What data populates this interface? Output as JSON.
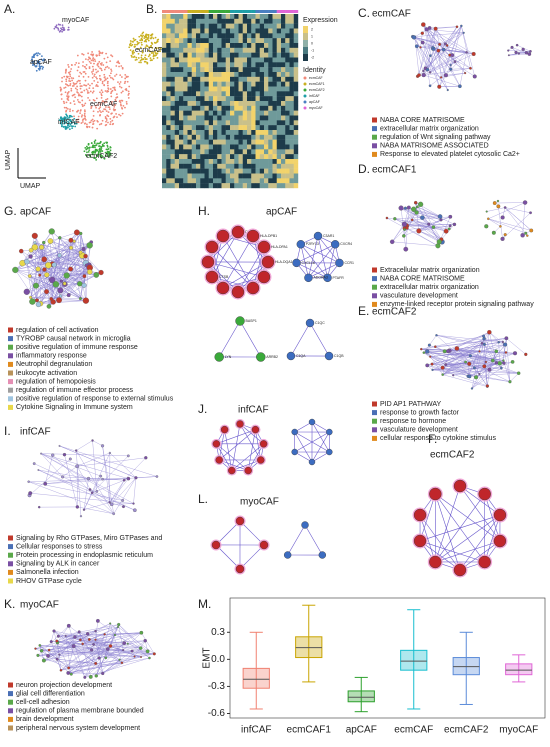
{
  "panels": {
    "A": {
      "letter": "A.",
      "clusters": [
        "myoCAF",
        "apCAF",
        "ecmCAF1",
        "ecmCAF",
        "infCAF",
        "ecmCAF2"
      ],
      "x_axis": "UMAP",
      "y_axis": "UMAP"
    },
    "B": {
      "letter": "B.",
      "expression_title": "Expression",
      "expression_ticks": [
        2,
        1,
        0,
        -1,
        -2
      ],
      "identity_title": "Identity",
      "identities": [
        "ecmCAF",
        "ecmCAF1",
        "ecmCAF2",
        "infCAF",
        "apCAF",
        "myoCAF"
      ]
    },
    "C": {
      "letter": "C.",
      "title": "ecmCAF",
      "terms": [
        "NABA CORE MATRISOME",
        "extracellular matrix organization",
        "regulation of Wnt signaling pathway",
        "NABA MATRISOME ASSOCIATED",
        "Response to elevated platelet cytosolic Ca2+"
      ]
    },
    "D": {
      "letter": "D.",
      "title": "ecmCAF1",
      "terms": [
        "Extracellular matrix organization",
        "NABA CORE MATRISOME",
        "extracellular matrix organization",
        "vasculature development",
        "enzyme-linked receptor protein signaling pathway"
      ]
    },
    "E": {
      "letter": "E.",
      "title": "ecmCAF2",
      "terms": [
        "PID AP1 PATHWAY",
        "response to growth factor",
        "response to hormone",
        "vasculature development",
        "cellular response to cytokine stimulus"
      ]
    },
    "F": {
      "letter": "F.",
      "title": "ecmCAF2"
    },
    "G": {
      "letter": "G.",
      "title": "apCAF",
      "terms": [
        "regulation of cell activation",
        "TYROBP causal network in microglia",
        "positive regulation of immune response",
        "inflammatory response",
        "Neutrophil degranulation",
        "leukocyte activation",
        "regulation of hemopoiesis",
        "regulation of immune effector process",
        "positive regulation of response to external stimulus",
        "Cytokine Signaling in Immune system"
      ]
    },
    "H": {
      "letter": "H.",
      "title": "apCAF",
      "genes_red": [
        "CD4",
        "HLA-DPB1",
        "HLA-DPA1",
        "HLA-DQA1",
        "CTSB"
      ],
      "genes_blue": [
        "C3AR1",
        "CXCR4",
        "CCR1",
        "PTAFR",
        "ADORA3",
        "CXCL16",
        "P2RY13"
      ],
      "genes_green": [
        "BASP1",
        "ARRB2",
        "LYN"
      ],
      "genes_c1q": [
        "C1QC",
        "C1QB",
        "C1QA"
      ]
    },
    "I": {
      "letter": "I.",
      "title": "infCAF",
      "terms": [
        "Signaling by Rho GTPases, Miro GTPases and",
        "Cellular responses to stress",
        "Protein processing in endoplasmic reticulum",
        "Signaling by ALK in cancer",
        "Salmonella infection",
        "RHOV GTPase cycle"
      ]
    },
    "J": {
      "letter": "J.",
      "title": "infCAF"
    },
    "K": {
      "letter": "K.",
      "title": "myoCAF",
      "terms": [
        "neuron projection development",
        "glial cell differentiation",
        "cell-cell adhesion",
        "regulation of plasma membrane bounded",
        "brain development",
        "peripheral nervous system development"
      ]
    },
    "L": {
      "letter": "L.",
      "title": "myoCAF"
    },
    "M": {
      "letter": "M."
    }
  },
  "chart_data": {
    "type": "box",
    "y_label": "EMT",
    "ylim": [
      -0.65,
      0.68
    ],
    "yticks": [
      0.3,
      {
        "value": 0,
        "label": "0.0"
      },
      -0.3,
      -0.6
    ],
    "boxes": [
      {
        "name": "infCAF",
        "color": "#f08070",
        "min": -0.55,
        "q1": -0.32,
        "median": -0.22,
        "q3": -0.1,
        "max": 0.3
      },
      {
        "name": "ecmCAF1",
        "color": "#c9a400",
        "min": -0.25,
        "q1": 0.02,
        "median": 0.13,
        "q3": 0.25,
        "max": 0.6
      },
      {
        "name": "apCAF",
        "color": "#2ca02c",
        "min": -0.58,
        "q1": -0.47,
        "median": -0.42,
        "q3": -0.35,
        "max": -0.2
      },
      {
        "name": "ecmCAF",
        "color": "#17becf",
        "min": -0.55,
        "q1": -0.12,
        "median": -0.02,
        "q3": 0.1,
        "max": 0.55
      },
      {
        "name": "ecmCAF2",
        "color": "#5b8bd9",
        "min": -0.5,
        "q1": -0.17,
        "median": -0.08,
        "q3": 0.02,
        "max": 0.3
      },
      {
        "name": "myoCAF",
        "color": "#e066d6",
        "min": -0.25,
        "q1": -0.17,
        "median": -0.12,
        "q3": -0.05,
        "max": 0.05
      }
    ]
  }
}
